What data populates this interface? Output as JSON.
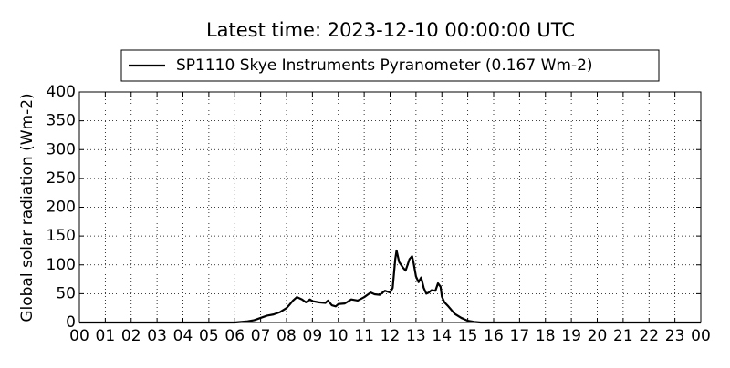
{
  "chart_data": {
    "type": "line",
    "title": "Latest time: 2023-12-10 00:00:00 UTC",
    "y_label": "Global solar radiation (Wm-2)",
    "series": [
      {
        "name": "SP1110 Skye Instruments Pyranometer (0.167 Wm-2)",
        "color": "#000000",
        "x": [
          0,
          6.0,
          6.25,
          6.5,
          6.75,
          7.0,
          7.25,
          7.5,
          7.75,
          8.0,
          8.1,
          8.25,
          8.4,
          8.6,
          8.75,
          8.9,
          9.0,
          9.25,
          9.5,
          9.6,
          9.75,
          9.9,
          10.0,
          10.25,
          10.5,
          10.75,
          11.0,
          11.25,
          11.4,
          11.6,
          11.8,
          12.0,
          12.1,
          12.2,
          12.25,
          12.35,
          12.5,
          12.6,
          12.75,
          12.85,
          12.9,
          13.0,
          13.1,
          13.2,
          13.3,
          13.4,
          13.5,
          13.6,
          13.75,
          13.85,
          13.95,
          14.0,
          14.1,
          14.25,
          14.4,
          14.5,
          14.75,
          15.0,
          15.25,
          15.5,
          24
        ],
        "values": [
          0,
          0,
          1,
          2,
          4,
          8,
          12,
          14,
          18,
          25,
          30,
          38,
          44,
          40,
          35,
          40,
          37,
          35,
          34,
          38,
          30,
          28,
          32,
          33,
          40,
          38,
          44,
          52,
          49,
          48,
          55,
          52,
          60,
          110,
          125,
          105,
          95,
          90,
          110,
          115,
          105,
          80,
          70,
          78,
          60,
          50,
          52,
          56,
          55,
          68,
          62,
          45,
          35,
          28,
          20,
          15,
          8,
          3,
          1,
          0,
          0
        ]
      }
    ],
    "xlim": [
      0,
      24
    ],
    "xticks": [
      {
        "value": 0,
        "label": "00"
      },
      {
        "value": 1,
        "label": "01"
      },
      {
        "value": 2,
        "label": "02"
      },
      {
        "value": 3,
        "label": "03"
      },
      {
        "value": 4,
        "label": "04"
      },
      {
        "value": 5,
        "label": "05"
      },
      {
        "value": 6,
        "label": "06"
      },
      {
        "value": 7,
        "label": "07"
      },
      {
        "value": 8,
        "label": "08"
      },
      {
        "value": 9,
        "label": "09"
      },
      10,
      11,
      12,
      13,
      14,
      15,
      16,
      17,
      18,
      19,
      20,
      21,
      22,
      23,
      {
        "value": 24,
        "label": "00"
      }
    ],
    "ylim": [
      0,
      400
    ],
    "yticks": [
      0,
      50,
      100,
      150,
      200,
      250,
      300,
      350,
      400
    ],
    "grid": true,
    "legend": "top"
  }
}
